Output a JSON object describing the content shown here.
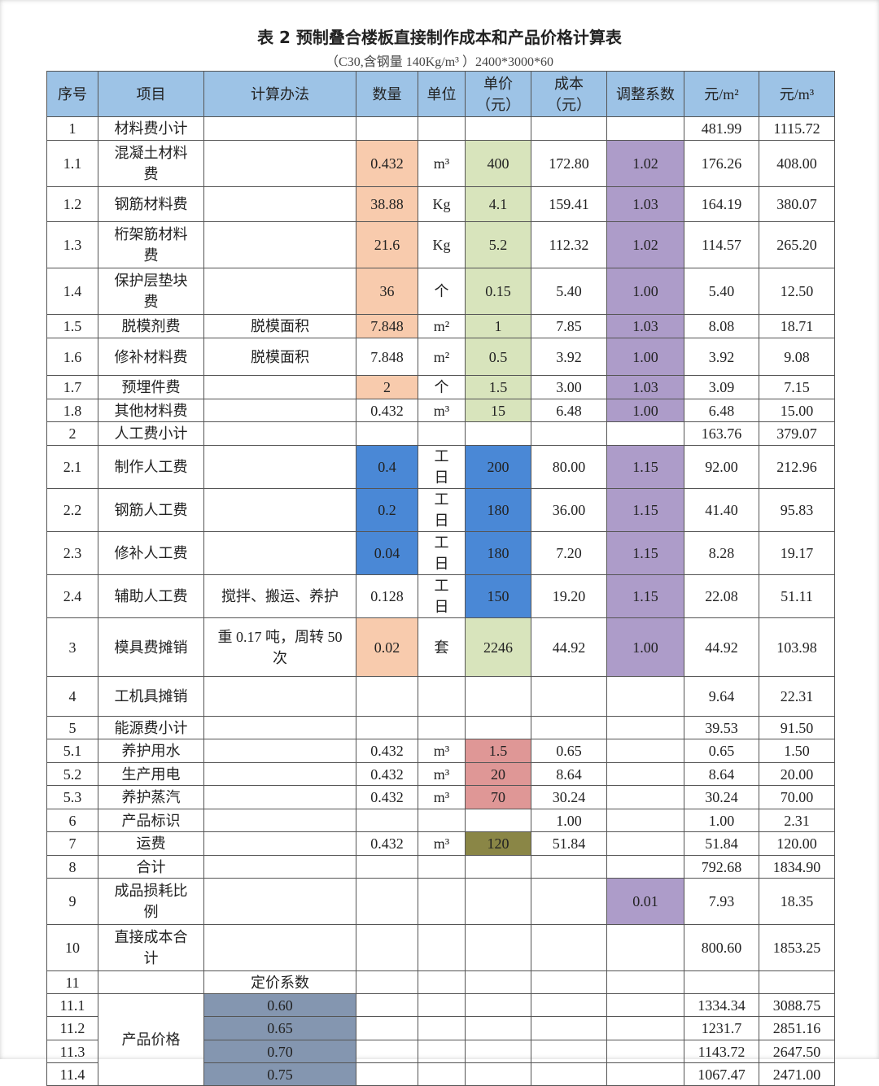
{
  "title": "表 2 预制叠合楼板直接制作成本和产品价格计算表",
  "subtitle": "（C30,含钢量 140Kg/m³ ）2400*3000*60",
  "colors": {
    "header": "#9dc3e6",
    "orange": "#f8cbad",
    "green": "#d8e4bc",
    "purple": "#ad9cc9",
    "blue": "#4a88d6",
    "red": "#df9796",
    "olive": "#8a8646",
    "slate": "#8496b0"
  },
  "headers": [
    "序号",
    "项目",
    "计算办法",
    "数量",
    "单位",
    "单价\n（元）",
    "成本\n（元）",
    "调整系数",
    "元/m²",
    "元/m³"
  ],
  "rows": [
    {
      "no": "1",
      "item": "材料费小计",
      "method": "",
      "qty": "",
      "unit": "",
      "price": "",
      "cost": "",
      "coef": "",
      "m2": "481.99",
      "m3": "1115.72"
    },
    {
      "no": "1.1",
      "item": "混凝土材料费",
      "method": "",
      "qty": "0.432",
      "unit": "m³",
      "price": "400",
      "cost": "172.80",
      "coef": "1.02",
      "m2": "176.26",
      "m3": "408.00",
      "fill": {
        "qty": "orange",
        "price": "green",
        "coef": "purple"
      }
    },
    {
      "no": "1.2",
      "item": "钢筋材料费",
      "method": "",
      "qty": "38.88",
      "unit": "Kg",
      "price": "4.1",
      "cost": "159.41",
      "coef": "1.03",
      "m2": "164.19",
      "m3": "380.07",
      "fill": {
        "qty": "orange",
        "price": "green",
        "coef": "purple"
      }
    },
    {
      "no": "1.3",
      "item": "桁架筋材料费",
      "method": "",
      "qty": "21.6",
      "unit": "Kg",
      "price": "5.2",
      "cost": "112.32",
      "coef": "1.02",
      "m2": "114.57",
      "m3": "265.20",
      "fill": {
        "qty": "orange",
        "price": "green",
        "coef": "purple"
      }
    },
    {
      "no": "1.4",
      "item": "保护层垫块费",
      "method": "",
      "qty": "36",
      "unit": "个",
      "price": "0.15",
      "cost": "5.40",
      "coef": "1.00",
      "m2": "5.40",
      "m3": "12.50",
      "fill": {
        "qty": "orange",
        "price": "green",
        "coef": "purple"
      }
    },
    {
      "no": "1.5",
      "item": "脱模剂费",
      "method": "脱模面积",
      "qty": "7.848",
      "unit": "m²",
      "price": "1",
      "cost": "7.85",
      "coef": "1.03",
      "m2": "8.08",
      "m3": "18.71",
      "fill": {
        "qty": "orange",
        "price": "green",
        "coef": "purple"
      }
    },
    {
      "no": "1.6",
      "item": "修补材料费",
      "method": "脱模面积",
      "qty": "7.848",
      "unit": "m²",
      "price": "0.5",
      "cost": "3.92",
      "coef": "1.00",
      "m2": "3.92",
      "m3": "9.08",
      "fill": {
        "price": "green",
        "coef": "purple"
      }
    },
    {
      "no": "1.7",
      "item": "预埋件费",
      "method": "",
      "qty": "2",
      "unit": "个",
      "price": "1.5",
      "cost": "3.00",
      "coef": "1.03",
      "m2": "3.09",
      "m3": "7.15",
      "fill": {
        "qty": "orange",
        "price": "green",
        "coef": "purple"
      }
    },
    {
      "no": "1.8",
      "item": "其他材料费",
      "method": "",
      "qty": "0.432",
      "unit": "m³",
      "price": "15",
      "cost": "6.48",
      "coef": "1.00",
      "m2": "6.48",
      "m3": "15.00",
      "fill": {
        "price": "green",
        "coef": "purple"
      }
    },
    {
      "no": "2",
      "item": "人工费小计",
      "method": "",
      "qty": "",
      "unit": "",
      "price": "",
      "cost": "",
      "coef": "",
      "m2": "163.76",
      "m3": "379.07"
    },
    {
      "no": "2.1",
      "item": "制作人工费",
      "method": "",
      "qty": "0.4",
      "unit": "工日",
      "price": "200",
      "cost": "80.00",
      "coef": "1.15",
      "m2": "92.00",
      "m3": "212.96",
      "fill": {
        "qty": "blue",
        "price": "blue",
        "coef": "purple"
      }
    },
    {
      "no": "2.2",
      "item": "钢筋人工费",
      "method": "",
      "qty": "0.2",
      "unit": "工日",
      "price": "180",
      "cost": "36.00",
      "coef": "1.15",
      "m2": "41.40",
      "m3": "95.83",
      "fill": {
        "qty": "blue",
        "price": "blue",
        "coef": "purple"
      }
    },
    {
      "no": "2.3",
      "item": "修补人工费",
      "method": "",
      "qty": "0.04",
      "unit": "工日",
      "price": "180",
      "cost": "7.20",
      "coef": "1.15",
      "m2": "8.28",
      "m3": "19.17",
      "fill": {
        "qty": "blue",
        "price": "blue",
        "coef": "purple"
      }
    },
    {
      "no": "2.4",
      "item": "辅助人工费",
      "method": "搅拌、搬运、养护",
      "qty": "0.128",
      "unit": "工日",
      "price": "150",
      "cost": "19.20",
      "coef": "1.15",
      "m2": "22.08",
      "m3": "51.11",
      "fill": {
        "price": "blue",
        "coef": "purple"
      }
    },
    {
      "no": "3",
      "item": "模具费摊销",
      "method": "重 0.17 吨，周转 50 次",
      "qty": "0.02",
      "unit": "套",
      "price": "2246",
      "cost": "44.92",
      "coef": "1.00",
      "m2": "44.92",
      "m3": "103.98",
      "fill": {
        "qty": "orange",
        "price": "green",
        "coef": "purple"
      }
    },
    {
      "no": "4",
      "item": "工机具摊销",
      "method": "",
      "qty": "",
      "unit": "",
      "price": "",
      "cost": "",
      "coef": "",
      "m2": "9.64",
      "m3": "22.31"
    },
    {
      "no": "5",
      "item": "能源费小计",
      "method": "",
      "qty": "",
      "unit": "",
      "price": "",
      "cost": "",
      "coef": "",
      "m2": "39.53",
      "m3": "91.50"
    },
    {
      "no": "5.1",
      "item": "养护用水",
      "method": "",
      "qty": "0.432",
      "unit": "m³",
      "price": "1.5",
      "cost": "0.65",
      "coef": "",
      "m2": "0.65",
      "m3": "1.50",
      "fill": {
        "price": "red"
      }
    },
    {
      "no": "5.2",
      "item": "生产用电",
      "method": "",
      "qty": "0.432",
      "unit": "m³",
      "price": "20",
      "cost": "8.64",
      "coef": "",
      "m2": "8.64",
      "m3": "20.00",
      "fill": {
        "price": "red"
      }
    },
    {
      "no": "5.3",
      "item": "养护蒸汽",
      "method": "",
      "qty": "0.432",
      "unit": "m³",
      "price": "70",
      "cost": "30.24",
      "coef": "",
      "m2": "30.24",
      "m3": "70.00",
      "fill": {
        "price": "red"
      }
    },
    {
      "no": "6",
      "item": "产品标识",
      "method": "",
      "qty": "",
      "unit": "",
      "price": "",
      "cost": "1.00",
      "coef": "",
      "m2": "1.00",
      "m3": "2.31"
    },
    {
      "no": "7",
      "item": "运费",
      "method": "",
      "qty": "0.432",
      "unit": "m³",
      "price": "120",
      "cost": "51.84",
      "coef": "",
      "m2": "51.84",
      "m3": "120.00",
      "fill": {
        "price": "olive"
      }
    },
    {
      "no": "8",
      "item": "合计",
      "method": "",
      "qty": "",
      "unit": "",
      "price": "",
      "cost": "",
      "coef": "",
      "m2": "792.68",
      "m3": "1834.90"
    },
    {
      "no": "9",
      "item": "成品损耗比例",
      "method": "",
      "qty": "",
      "unit": "",
      "price": "",
      "cost": "",
      "coef": "0.01",
      "m2": "7.93",
      "m3": "18.35",
      "fill": {
        "coef": "purple"
      }
    },
    {
      "no": "10",
      "item": "直接成本合计",
      "method": "",
      "qty": "",
      "unit": "",
      "price": "",
      "cost": "",
      "coef": "",
      "m2": "800.60",
      "m3": "1853.25"
    },
    {
      "no": "11",
      "item": "",
      "method": "定价系数",
      "qty": "",
      "unit": "",
      "price": "",
      "cost": "",
      "coef": "",
      "m2": "",
      "m3": ""
    },
    {
      "no": "11.1",
      "item": "产品价格",
      "item_rowspan": 4,
      "method": "0.60",
      "qty": "",
      "unit": "",
      "price": "",
      "cost": "",
      "coef": "",
      "m2": "1334.34",
      "m3": "3088.75",
      "fill": {
        "method": "slate"
      }
    },
    {
      "no": "11.2",
      "method": "0.65",
      "qty": "",
      "unit": "",
      "price": "",
      "cost": "",
      "coef": "",
      "m2": "1231.7",
      "m3": "2851.16",
      "fill": {
        "method": "slate"
      }
    },
    {
      "no": "11.3",
      "method": "0.70",
      "qty": "",
      "unit": "",
      "price": "",
      "cost": "",
      "coef": "",
      "m2": "1143.72",
      "m3": "2647.50",
      "fill": {
        "method": "slate"
      }
    },
    {
      "no": "11.4",
      "method": "0.75",
      "qty": "",
      "unit": "",
      "price": "",
      "cost": "",
      "coef": "",
      "m2": "1067.47",
      "m3": "2471.00",
      "fill": {
        "method": "slate"
      }
    }
  ]
}
